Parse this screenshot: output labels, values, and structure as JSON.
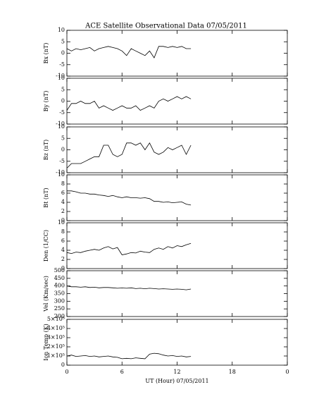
{
  "chart_data": [
    {
      "type": "line",
      "title": "ACE Satellite Observational Data   07/05/2011",
      "ylabel": "Bx (nT)",
      "color": "#000000",
      "xlim": [
        0,
        24
      ],
      "xticks": [
        0,
        6,
        12,
        18,
        {
          "value": 24,
          "label": "0"
        }
      ],
      "ylim": [
        -10,
        10
      ],
      "yticks": [
        -10,
        -5,
        0,
        5,
        10
      ],
      "x": [
        0,
        0.5,
        1,
        1.5,
        2,
        2.5,
        3,
        3.5,
        4,
        4.5,
        5,
        5.5,
        6,
        6.5,
        7,
        7.5,
        8,
        8.5,
        9,
        9.5,
        10,
        10.5,
        11,
        11.5,
        12,
        12.5,
        13,
        13.5
      ],
      "values": [
        2,
        1,
        2,
        1.5,
        2,
        2.5,
        1,
        2,
        2.5,
        3,
        2.5,
        2,
        1,
        -1,
        2,
        1,
        0,
        -1,
        1,
        -2,
        3,
        3,
        2.5,
        3,
        2.5,
        3,
        2,
        2
      ]
    },
    {
      "type": "line",
      "ylabel": "By (nT)",
      "color": "#000000",
      "xlim": [
        0,
        24
      ],
      "xticks": [
        0,
        6,
        12,
        18,
        {
          "value": 24,
          "label": "0"
        }
      ],
      "ylim": [
        -10,
        10
      ],
      "yticks": [
        -10,
        -5,
        0,
        5,
        10
      ],
      "x": [
        0,
        0.5,
        1,
        1.5,
        2,
        2.5,
        3,
        3.5,
        4,
        4.5,
        5,
        5.5,
        6,
        6.5,
        7,
        7.5,
        8,
        8.5,
        9,
        9.5,
        10,
        10.5,
        11,
        11.5,
        12,
        12.5,
        13,
        13.5
      ],
      "values": [
        -4,
        -1,
        -1,
        0,
        -1,
        -1,
        0,
        -3,
        -2,
        -3,
        -4,
        -3,
        -2,
        -3,
        -3,
        -2,
        -4,
        -3,
        -2,
        -3,
        0,
        1,
        0,
        1,
        2,
        1,
        2,
        1
      ]
    },
    {
      "type": "line",
      "ylabel": "Bz (nT)",
      "color": "#000000",
      "xlim": [
        0,
        24
      ],
      "xticks": [
        0,
        6,
        12,
        18,
        {
          "value": 24,
          "label": "0"
        }
      ],
      "ylim": [
        -10,
        10
      ],
      "yticks": [
        -10,
        -5,
        0,
        5,
        10
      ],
      "x": [
        0,
        0.5,
        1,
        1.5,
        2,
        2.5,
        3,
        3.5,
        4,
        4.5,
        5,
        5.5,
        6,
        6.5,
        7,
        7.5,
        8,
        8.5,
        9,
        9.5,
        10,
        10.5,
        11,
        11.5,
        12,
        12.5,
        13,
        13.5
      ],
      "values": [
        -8,
        -6,
        -6,
        -6,
        -5,
        -4,
        -3,
        -3,
        2,
        2,
        -2,
        -3,
        -2,
        3,
        3,
        2,
        3,
        0,
        3,
        -1,
        -2,
        -1,
        1,
        0,
        1,
        2,
        -2,
        2
      ]
    },
    {
      "type": "line",
      "ylabel": "Bt (nT)",
      "color": "#000000",
      "xlim": [
        0,
        24
      ],
      "xticks": [
        0,
        6,
        12,
        18,
        {
          "value": 24,
          "label": "0"
        }
      ],
      "ylim": [
        0,
        10
      ],
      "yticks": [
        0,
        2,
        4,
        6,
        8,
        10
      ],
      "x": [
        0,
        0.5,
        1,
        1.5,
        2,
        2.5,
        3,
        3.5,
        4,
        4.5,
        5,
        5.5,
        6,
        6.5,
        7,
        7.5,
        8,
        8.5,
        9,
        9.5,
        10,
        10.5,
        11,
        11.5,
        12,
        12.5,
        13,
        13.5
      ],
      "values": [
        6.5,
        6.5,
        6.3,
        6,
        6,
        5.8,
        5.8,
        5.6,
        5.5,
        5.3,
        5.5,
        5.2,
        5,
        5.2,
        5,
        5,
        4.9,
        5,
        4.8,
        4.2,
        4.2,
        4,
        4.1,
        3.9,
        4,
        4.1,
        3.6,
        3.4
      ]
    },
    {
      "type": "line",
      "ylabel": "Den (1/CC)",
      "color": "#000000",
      "xlim": [
        0,
        24
      ],
      "xticks": [
        0,
        6,
        12,
        18,
        {
          "value": 24,
          "label": "0"
        }
      ],
      "ylim": [
        0,
        10
      ],
      "yticks": [
        0,
        2,
        4,
        6,
        8,
        10
      ],
      "x": [
        0,
        0.5,
        1,
        1.5,
        2,
        2.5,
        3,
        3.5,
        4,
        4.5,
        5,
        5.5,
        6,
        6.5,
        7,
        7.5,
        8,
        8.5,
        9,
        9.5,
        10,
        10.5,
        11,
        11.5,
        12,
        12.5,
        13,
        13.5
      ],
      "values": [
        3.5,
        3.3,
        3.6,
        3.5,
        3.8,
        4,
        4.2,
        4,
        4.5,
        4.8,
        4.3,
        4.6,
        3,
        3.2,
        3.5,
        3.4,
        3.8,
        3.6,
        3.5,
        4.2,
        4.5,
        4.2,
        4.8,
        4.5,
        5,
        4.8,
        5.2,
        5.5
      ]
    },
    {
      "type": "line",
      "ylabel": "Vel (Km/sec)",
      "color": "#000000",
      "xlim": [
        0,
        24
      ],
      "xticks": [
        0,
        6,
        12,
        18,
        {
          "value": 24,
          "label": "0"
        }
      ],
      "ylim": [
        200,
        500
      ],
      "yticks": [
        200,
        250,
        300,
        350,
        400,
        450,
        500
      ],
      "x": [
        0,
        0.5,
        1,
        1.5,
        2,
        2.5,
        3,
        3.5,
        4,
        4.5,
        5,
        5.5,
        6,
        6.5,
        7,
        7.5,
        8,
        8.5,
        9,
        9.5,
        10,
        10.5,
        11,
        11.5,
        12,
        12.5,
        13,
        13.5
      ],
      "values": [
        400,
        395,
        395,
        392,
        395,
        390,
        392,
        388,
        390,
        390,
        388,
        385,
        387,
        385,
        388,
        383,
        385,
        382,
        385,
        383,
        380,
        382,
        380,
        378,
        380,
        378,
        375,
        380
      ]
    },
    {
      "type": "line",
      "ylabel": "Ion Temp (K)",
      "xlabel": "UT (Hour)  07/05/2011",
      "color": "#000000",
      "xlim": [
        0,
        24
      ],
      "xticks": [
        0,
        6,
        12,
        18,
        {
          "value": 24,
          "label": "0"
        }
      ],
      "ylim": [
        0,
        500000
      ],
      "yticks": [
        0,
        {
          "value": 100000,
          "label": "1×10⁵"
        },
        {
          "value": 200000,
          "label": "2×10⁵"
        },
        {
          "value": 300000,
          "label": "3×10⁵"
        },
        {
          "value": 400000,
          "label": "4×10⁵"
        },
        {
          "value": 500000,
          "label": "5×10⁵"
        }
      ],
      "x": [
        0,
        0.5,
        1,
        1.5,
        2,
        2.5,
        3,
        3.5,
        4,
        4.5,
        5,
        5.5,
        6,
        6.5,
        7,
        7.5,
        8,
        8.5,
        9,
        9.5,
        10,
        10.5,
        11,
        11.5,
        12,
        12.5,
        13,
        13.5
      ],
      "values": [
        100000,
        110000,
        95000,
        100000,
        105000,
        95000,
        100000,
        90000,
        95000,
        100000,
        90000,
        85000,
        70000,
        75000,
        70000,
        80000,
        75000,
        70000,
        120000,
        130000,
        125000,
        110000,
        100000,
        105000,
        95000,
        100000,
        90000,
        95000
      ]
    }
  ]
}
